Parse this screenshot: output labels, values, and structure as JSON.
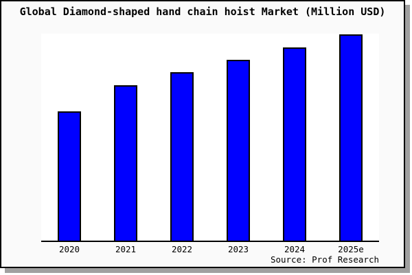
{
  "chart_data": {
    "type": "bar",
    "title": "Global Diamond-shaped hand chain hoist Market (Million USD)",
    "categories": [
      "2020",
      "2021",
      "2022",
      "2023",
      "2024",
      "2025e"
    ],
    "values": [
      62.7,
      75.3,
      81.7,
      87.7,
      93.7,
      100
    ],
    "values_note": "no numeric y-axis shown; values are relative bar heights as percent of tallest bar (2025e = 100)",
    "xlabel": "",
    "ylabel": "",
    "ylim": [
      0,
      100
    ],
    "grid": false,
    "legend": false,
    "source": "Source: Prof Research",
    "colors": {
      "bar_fill": "#0000ff",
      "bar_border": "#000000",
      "plot_background": "#ffffff",
      "canvas_background": "#fafafa",
      "frame_border": "#000000",
      "shadow": "#a0a0a0",
      "text": "#000000"
    }
  }
}
